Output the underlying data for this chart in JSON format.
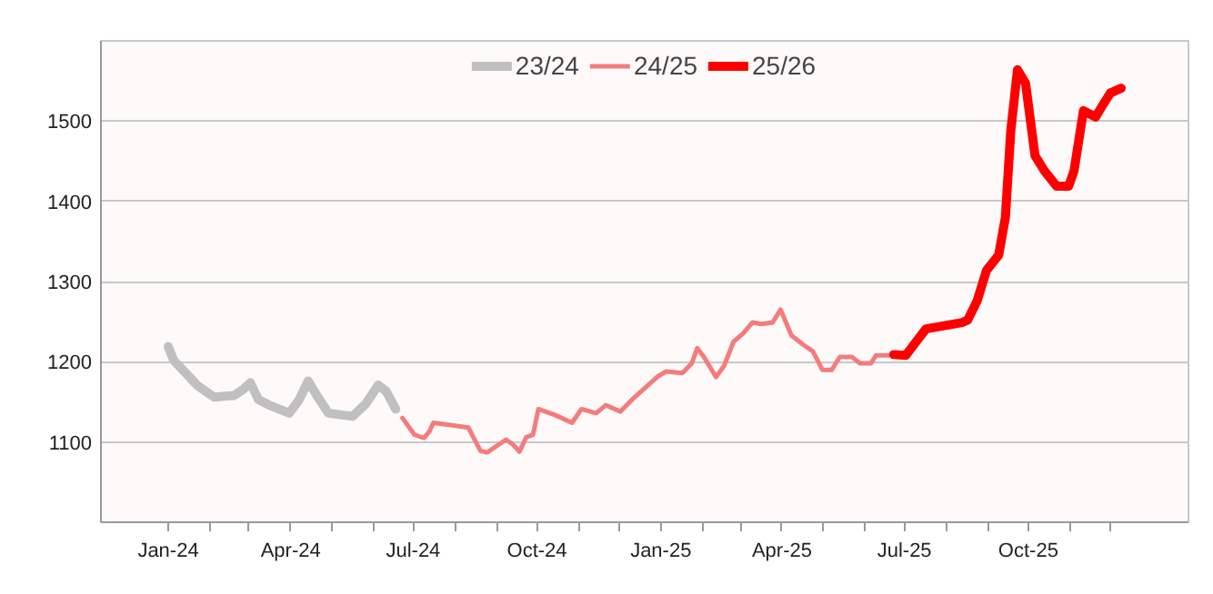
{
  "chart_data": {
    "type": "line",
    "xlim": [
      "2023-11-12",
      "2026-01-28"
    ],
    "ylim": [
      1000,
      1600
    ],
    "xticks": [
      {
        "value": "2024-01-01",
        "label": "Jan-24"
      },
      {
        "value": "2024-02-01",
        "label": null
      },
      {
        "value": "2024-03-01",
        "label": null
      },
      {
        "value": "2024-04-01",
        "label": "Apr-24"
      },
      {
        "value": "2024-05-01",
        "label": null
      },
      {
        "value": "2024-06-01",
        "label": null
      },
      {
        "value": "2024-07-01",
        "label": "Jul-24"
      },
      {
        "value": "2024-08-01",
        "label": null
      },
      {
        "value": "2024-09-01",
        "label": null
      },
      {
        "value": "2024-10-01",
        "label": "Oct-24"
      },
      {
        "value": "2024-11-01",
        "label": null
      },
      {
        "value": "2024-12-01",
        "label": null
      },
      {
        "value": "2025-01-01",
        "label": "Jan-25"
      },
      {
        "value": "2025-02-01",
        "label": null
      },
      {
        "value": "2025-03-01",
        "label": null
      },
      {
        "value": "2025-04-01",
        "label": "Apr-25"
      },
      {
        "value": "2025-05-01",
        "label": null
      },
      {
        "value": "2025-06-01",
        "label": null
      },
      {
        "value": "2025-07-01",
        "label": "Jul-25"
      },
      {
        "value": "2025-08-01",
        "label": null
      },
      {
        "value": "2025-09-01",
        "label": null
      },
      {
        "value": "2025-10-01",
        "label": "Oct-25"
      },
      {
        "value": "2025-11-01",
        "label": null
      },
      {
        "value": "2025-12-01",
        "label": null
      }
    ],
    "yticks": [
      1100,
      1200,
      1300,
      1400,
      1500
    ],
    "grid": "y",
    "legend": "top",
    "line_style": "solid",
    "series": [
      {
        "name": "23/24",
        "color": "#c0c0c0",
        "x": [
          "2024-01-01",
          "2024-01-05",
          "2024-01-14",
          "2024-01-23",
          "2024-02-04",
          "2024-02-19",
          "2024-02-26",
          "2024-03-02",
          "2024-03-08",
          "2024-03-16",
          "2024-03-31",
          "2024-04-07",
          "2024-04-14",
          "2024-04-20",
          "2024-04-29",
          "2024-05-17",
          "2024-05-27",
          "2024-06-05",
          "2024-06-11",
          "2024-06-18"
        ],
        "values": [
          1219,
          1202,
          1186,
          1170,
          1156,
          1158,
          1166,
          1174,
          1153,
          1146,
          1136,
          1152,
          1176,
          1159,
          1136,
          1132,
          1148,
          1171,
          1163,
          1141
        ]
      },
      {
        "name": "24/25",
        "color": "#f47c7c",
        "x": [
          "2024-06-23",
          "2024-07-02",
          "2024-07-09",
          "2024-07-13",
          "2024-07-16",
          "2024-08-11",
          "2024-08-20",
          "2024-08-25",
          "2024-09-08",
          "2024-09-13",
          "2024-09-18",
          "2024-09-23",
          "2024-09-28",
          "2024-10-02",
          "2024-10-14",
          "2024-10-27",
          "2024-11-03",
          "2024-11-14",
          "2024-11-21",
          "2024-12-02",
          "2024-12-12",
          "2024-12-30",
          "2025-01-05",
          "2025-01-17",
          "2025-01-24",
          "2025-01-28",
          "2025-02-02",
          "2025-02-11",
          "2025-02-17",
          "2025-02-24",
          "2025-03-03",
          "2025-03-10",
          "2025-03-17",
          "2025-03-25",
          "2025-03-31",
          "2025-04-08",
          "2025-04-17",
          "2025-04-24",
          "2025-05-01",
          "2025-05-08",
          "2025-05-14",
          "2025-05-23",
          "2025-05-29",
          "2025-06-06",
          "2025-06-10",
          "2025-06-19"
        ],
        "values": [
          1130,
          1109,
          1105,
          1113,
          1124,
          1118,
          1089,
          1087,
          1103,
          1097,
          1088,
          1106,
          1109,
          1141,
          1134,
          1124,
          1141,
          1136,
          1146,
          1138,
          1155,
          1182,
          1188,
          1186,
          1198,
          1217,
          1206,
          1181,
          1195,
          1225,
          1235,
          1249,
          1247,
          1249,
          1265,
          1233,
          1221,
          1213,
          1190,
          1190,
          1206,
          1206,
          1198,
          1198,
          1208,
          1208
        ]
      },
      {
        "name": "25/26",
        "color": "#ff0000",
        "x": [
          "2025-06-23",
          "2025-07-02",
          "2025-07-17",
          "2025-08-13",
          "2025-08-17",
          "2025-08-24",
          "2025-08-31",
          "2025-09-09",
          "2025-09-14",
          "2025-09-18",
          "2025-09-23",
          "2025-09-29",
          "2025-10-06",
          "2025-10-13",
          "2025-10-22",
          "2025-10-31",
          "2025-11-04",
          "2025-11-11",
          "2025-11-20",
          "2025-11-25",
          "2025-12-01",
          "2025-12-09"
        ],
        "values": [
          1209,
          1208,
          1241,
          1249,
          1252,
          1276,
          1314,
          1333,
          1380,
          1488,
          1564,
          1547,
          1457,
          1438,
          1419,
          1419,
          1438,
          1513,
          1505,
          1519,
          1535,
          1541
        ]
      }
    ]
  }
}
